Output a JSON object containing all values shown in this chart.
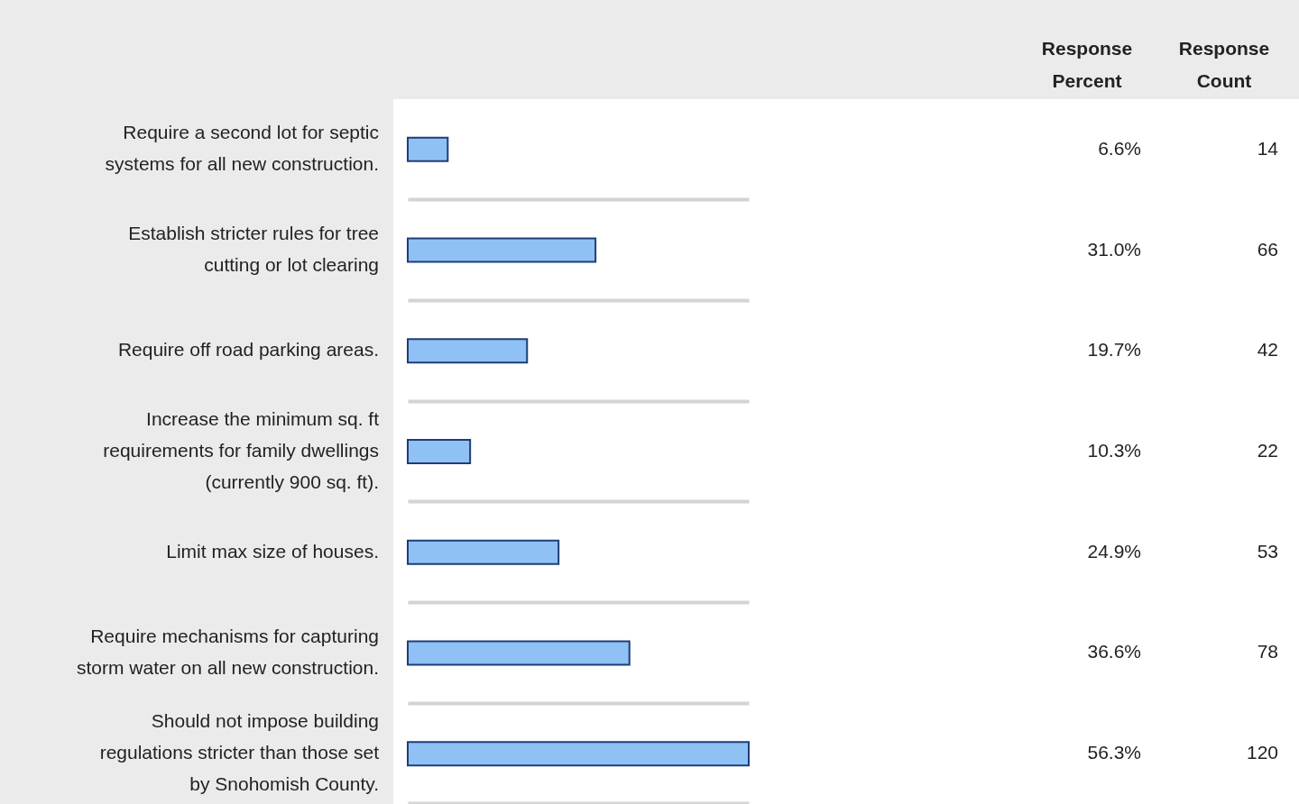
{
  "chart_data": {
    "type": "bar",
    "orientation": "horizontal",
    "categories": [
      "Require a second lot for septic systems for all new construction.",
      "Establish stricter rules for tree cutting or lot clearing",
      "Require off road parking areas.",
      "Increase the minimum sq. ft requirements for family dwellings (currently 900 sq. ft).",
      "Limit max size of houses.",
      "Require mechanisms for capturing storm water on all new construction.",
      "Should not impose building regulations stricter than those set by Snohomish County."
    ],
    "values": [
      6.6,
      31.0,
      19.7,
      10.3,
      24.9,
      36.6,
      56.3
    ],
    "value_labels": [
      "6.6%",
      "31.0%",
      "19.7%",
      "10.3%",
      "24.9%",
      "36.6%",
      "56.3%"
    ],
    "color": "#8fc1f5",
    "tick_labels": false,
    "annotations": [
      "Response Percent",
      "Response Count",
      "14",
      "66",
      "42",
      "22",
      "53",
      "78",
      "120"
    ]
  }
}
